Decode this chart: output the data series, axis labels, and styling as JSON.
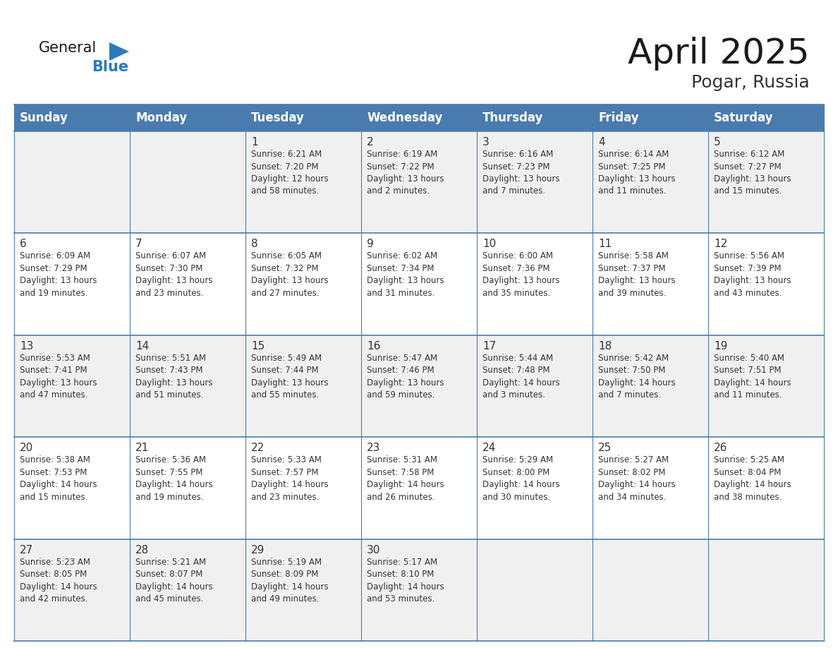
{
  "title": "April 2025",
  "subtitle": "Pogar, Russia",
  "days_of_week": [
    "Sunday",
    "Monday",
    "Tuesday",
    "Wednesday",
    "Thursday",
    "Friday",
    "Saturday"
  ],
  "header_bg_color": "#4a7baf",
  "header_text_color": "#ffffff",
  "cell_bg_even": "#f0f0f0",
  "cell_bg_odd": "#ffffff",
  "cell_border_color": "#4a7baf",
  "day_number_color": "#333333",
  "cell_text_color": "#333333",
  "title_color": "#1a1a1a",
  "subtitle_color": "#333333",
  "general_color": "#1a1a1a",
  "blue_color": "#2b7bba",
  "logo_general_fontsize": 15,
  "logo_blue_fontsize": 15,
  "title_fontsize": 36,
  "subtitle_fontsize": 18,
  "header_fontsize": 12,
  "day_num_fontsize": 11,
  "cell_text_fontsize": 8.5,
  "calendar_data": [
    [
      {
        "day": null,
        "text": ""
      },
      {
        "day": null,
        "text": ""
      },
      {
        "day": 1,
        "text": "Sunrise: 6:21 AM\nSunset: 7:20 PM\nDaylight: 12 hours\nand 58 minutes."
      },
      {
        "day": 2,
        "text": "Sunrise: 6:19 AM\nSunset: 7:22 PM\nDaylight: 13 hours\nand 2 minutes."
      },
      {
        "day": 3,
        "text": "Sunrise: 6:16 AM\nSunset: 7:23 PM\nDaylight: 13 hours\nand 7 minutes."
      },
      {
        "day": 4,
        "text": "Sunrise: 6:14 AM\nSunset: 7:25 PM\nDaylight: 13 hours\nand 11 minutes."
      },
      {
        "day": 5,
        "text": "Sunrise: 6:12 AM\nSunset: 7:27 PM\nDaylight: 13 hours\nand 15 minutes."
      }
    ],
    [
      {
        "day": 6,
        "text": "Sunrise: 6:09 AM\nSunset: 7:29 PM\nDaylight: 13 hours\nand 19 minutes."
      },
      {
        "day": 7,
        "text": "Sunrise: 6:07 AM\nSunset: 7:30 PM\nDaylight: 13 hours\nand 23 minutes."
      },
      {
        "day": 8,
        "text": "Sunrise: 6:05 AM\nSunset: 7:32 PM\nDaylight: 13 hours\nand 27 minutes."
      },
      {
        "day": 9,
        "text": "Sunrise: 6:02 AM\nSunset: 7:34 PM\nDaylight: 13 hours\nand 31 minutes."
      },
      {
        "day": 10,
        "text": "Sunrise: 6:00 AM\nSunset: 7:36 PM\nDaylight: 13 hours\nand 35 minutes."
      },
      {
        "day": 11,
        "text": "Sunrise: 5:58 AM\nSunset: 7:37 PM\nDaylight: 13 hours\nand 39 minutes."
      },
      {
        "day": 12,
        "text": "Sunrise: 5:56 AM\nSunset: 7:39 PM\nDaylight: 13 hours\nand 43 minutes."
      }
    ],
    [
      {
        "day": 13,
        "text": "Sunrise: 5:53 AM\nSunset: 7:41 PM\nDaylight: 13 hours\nand 47 minutes."
      },
      {
        "day": 14,
        "text": "Sunrise: 5:51 AM\nSunset: 7:43 PM\nDaylight: 13 hours\nand 51 minutes."
      },
      {
        "day": 15,
        "text": "Sunrise: 5:49 AM\nSunset: 7:44 PM\nDaylight: 13 hours\nand 55 minutes."
      },
      {
        "day": 16,
        "text": "Sunrise: 5:47 AM\nSunset: 7:46 PM\nDaylight: 13 hours\nand 59 minutes."
      },
      {
        "day": 17,
        "text": "Sunrise: 5:44 AM\nSunset: 7:48 PM\nDaylight: 14 hours\nand 3 minutes."
      },
      {
        "day": 18,
        "text": "Sunrise: 5:42 AM\nSunset: 7:50 PM\nDaylight: 14 hours\nand 7 minutes."
      },
      {
        "day": 19,
        "text": "Sunrise: 5:40 AM\nSunset: 7:51 PM\nDaylight: 14 hours\nand 11 minutes."
      }
    ],
    [
      {
        "day": 20,
        "text": "Sunrise: 5:38 AM\nSunset: 7:53 PM\nDaylight: 14 hours\nand 15 minutes."
      },
      {
        "day": 21,
        "text": "Sunrise: 5:36 AM\nSunset: 7:55 PM\nDaylight: 14 hours\nand 19 minutes."
      },
      {
        "day": 22,
        "text": "Sunrise: 5:33 AM\nSunset: 7:57 PM\nDaylight: 14 hours\nand 23 minutes."
      },
      {
        "day": 23,
        "text": "Sunrise: 5:31 AM\nSunset: 7:58 PM\nDaylight: 14 hours\nand 26 minutes."
      },
      {
        "day": 24,
        "text": "Sunrise: 5:29 AM\nSunset: 8:00 PM\nDaylight: 14 hours\nand 30 minutes."
      },
      {
        "day": 25,
        "text": "Sunrise: 5:27 AM\nSunset: 8:02 PM\nDaylight: 14 hours\nand 34 minutes."
      },
      {
        "day": 26,
        "text": "Sunrise: 5:25 AM\nSunset: 8:04 PM\nDaylight: 14 hours\nand 38 minutes."
      }
    ],
    [
      {
        "day": 27,
        "text": "Sunrise: 5:23 AM\nSunset: 8:05 PM\nDaylight: 14 hours\nand 42 minutes."
      },
      {
        "day": 28,
        "text": "Sunrise: 5:21 AM\nSunset: 8:07 PM\nDaylight: 14 hours\nand 45 minutes."
      },
      {
        "day": 29,
        "text": "Sunrise: 5:19 AM\nSunset: 8:09 PM\nDaylight: 14 hours\nand 49 minutes."
      },
      {
        "day": 30,
        "text": "Sunrise: 5:17 AM\nSunset: 8:10 PM\nDaylight: 14 hours\nand 53 minutes."
      },
      {
        "day": null,
        "text": ""
      },
      {
        "day": null,
        "text": ""
      },
      {
        "day": null,
        "text": ""
      }
    ]
  ]
}
